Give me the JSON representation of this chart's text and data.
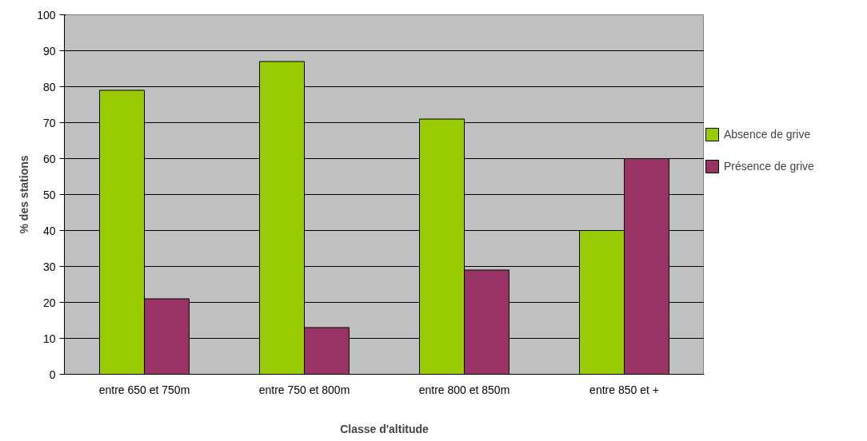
{
  "chart_data": {
    "type": "bar",
    "xlabel": "Classe d'altitude",
    "ylabel": "% des stations",
    "categories": [
      "entre 650 et 750m",
      "entre 750 et 800m",
      "entre 800 et 850m",
      "entre 850 et +"
    ],
    "series": [
      {
        "name": "Absence de grive",
        "color": "#99cc00",
        "values": [
          79,
          87,
          71,
          40
        ]
      },
      {
        "name": "Présence de grive",
        "color": "#993366",
        "values": [
          21,
          13,
          29,
          60
        ]
      }
    ],
    "ylim": [
      0,
      100
    ],
    "yticks": [
      0,
      10,
      20,
      30,
      40,
      50,
      60,
      70,
      80,
      90,
      100
    ],
    "grid": "y",
    "legend": "right"
  }
}
